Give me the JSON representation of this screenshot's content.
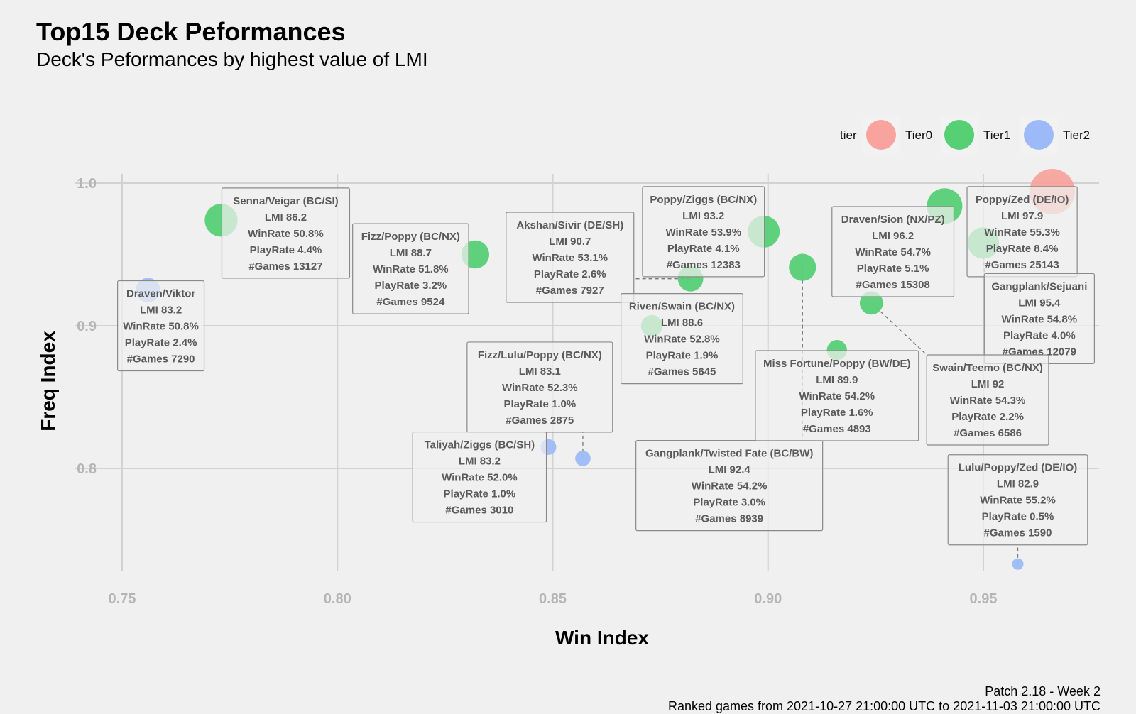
{
  "header": {
    "title": "Top15 Deck Peformances",
    "subtitle": "Deck's Peformances by highest value of LMI"
  },
  "caption": {
    "line1": "Patch 2.18 - Week 2",
    "line2": "Ranked games from 2021-10-27 21:00:00 UTC to 2021-11-03 21:00:00 UTC"
  },
  "chart_data": {
    "type": "scatter",
    "xlabel": "Win Index",
    "ylabel": "Freq Index",
    "xlim": [
      0.75,
      0.977
    ],
    "ylim": [
      0.72,
      1.005
    ],
    "x_ticks": [
      0.75,
      0.8,
      0.85,
      0.9,
      0.95
    ],
    "x_tick_labels": [
      "0.75",
      "0.80",
      "0.85",
      "0.90",
      "0.95"
    ],
    "y_ticks": [
      0.8,
      0.9,
      1.0
    ],
    "y_tick_labels": [
      "0.8",
      "0.9",
      "1.0"
    ],
    "grid": true,
    "legend": {
      "title": "tier",
      "placement": "top-right",
      "entries": [
        {
          "name": "Tier0",
          "color": "#f8a39d"
        },
        {
          "name": "Tier1",
          "color": "#56cf75"
        },
        {
          "name": "Tier2",
          "color": "#9cbaf7"
        }
      ]
    },
    "points": [
      {
        "deck": "Poppy/Zed (DE/IO)",
        "x": 0.966,
        "y": 0.994,
        "tier": "Tier0",
        "games": 25143,
        "lines": [
          "Poppy/Zed (DE/IO)",
          "LMI 97.9",
          "WinRate 55.3%",
          "PlayRate 8.4%",
          "#Games 25143"
        ],
        "label_x": 0.959,
        "label_y": 0.966,
        "label_bold_first": false
      },
      {
        "deck": "Draven/Sion (NX/PZ)",
        "x": 0.941,
        "y": 0.984,
        "tier": "Tier1",
        "games": 15308,
        "lines": [
          "Draven/Sion (NX/PZ)",
          "LMI 96.2",
          "WinRate 54.7%",
          "PlayRate 5.1%",
          "#Games 15308"
        ],
        "label_x": 0.929,
        "label_y": 0.952
      },
      {
        "deck": "Gangplank/Sejuani",
        "x": 0.95,
        "y": 0.958,
        "tier": "Tier1",
        "games": 12079,
        "lines": [
          "Gangplank/Sejuani",
          "LMI 95.4",
          "WinRate 54.8%",
          "PlayRate 4.0%",
          "#Games 12079"
        ],
        "label_x": 0.963,
        "label_y": 0.905
      },
      {
        "deck": "Poppy/Ziggs (BC/NX)",
        "x": 0.899,
        "y": 0.966,
        "tier": "Tier1",
        "games": 12383,
        "lines": [
          "Poppy/Ziggs (BC/NX)",
          "LMI 93.2",
          "WinRate 53.9%",
          "PlayRate 4.1%",
          "#Games 12383"
        ],
        "label_x": 0.885,
        "label_y": 0.966
      },
      {
        "deck": "Senna/Veigar (BC/SI)",
        "x": 0.773,
        "y": 0.974,
        "tier": "Tier1",
        "games": 13127,
        "lines": [
          "Senna/Veigar (BC/SI)",
          "LMI 86.2",
          "WinRate 50.8%",
          "PlayRate 4.4%",
          "#Games 13127"
        ],
        "label_x": 0.788,
        "label_y": 0.965
      },
      {
        "deck": "Fizz/Poppy (BC/NX)",
        "x": 0.832,
        "y": 0.95,
        "tier": "Tier1",
        "games": 9524,
        "lines": [
          "Fizz/Poppy (BC/NX)",
          "LMI 88.7",
          "WinRate 51.8%",
          "PlayRate 3.2%",
          "#Games 9524"
        ],
        "label_x": 0.817,
        "label_y": 0.94
      },
      {
        "deck": "Akshan/Sivir (DE/SH)",
        "x": 0.882,
        "y": 0.933,
        "tier": "Tier1",
        "games": 7927,
        "lines": [
          "Akshan/Sivir (DE/SH)",
          "LMI 90.7",
          "WinRate 53.1%",
          "PlayRate 2.6%",
          "#Games 7927"
        ],
        "label_x": 0.854,
        "label_y": 0.948
      },
      {
        "deck": "Gangplank/Twisted Fate (BC/BW)",
        "x": 0.908,
        "y": 0.941,
        "tier": "Tier1",
        "games": 8939,
        "lines": [
          "Gangplank/Twisted Fate (BC/BW)",
          "LMI 92.4",
          "WinRate 54.2%",
          "PlayRate 3.0%",
          "#Games 8939"
        ],
        "label_x": 0.891,
        "label_y": 0.788
      },
      {
        "deck": "Swain/Teemo (BC/NX)",
        "x": 0.924,
        "y": 0.916,
        "tier": "Tier1",
        "games": 6586,
        "lines": [
          "Swain/Teemo (BC/NX)",
          "LMI 92",
          "WinRate 54.3%",
          "PlayRate 2.2%",
          "#Games 6586"
        ],
        "label_x": 0.951,
        "label_y": 0.848
      },
      {
        "deck": "Miss Fortune/Poppy (BW/DE)",
        "x": 0.916,
        "y": 0.883,
        "tier": "Tier1",
        "games": 4893,
        "lines": [
          "Miss Fortune/Poppy (BW/DE)",
          "LMI 89.9",
          "WinRate 54.2%",
          "PlayRate 1.6%",
          "#Games 4893"
        ],
        "label_x": 0.916,
        "label_y": 0.851
      },
      {
        "deck": "Riven/Swain (BC/NX)",
        "x": 0.873,
        "y": 0.9,
        "tier": "Tier1",
        "games": 5645,
        "lines": [
          "Riven/Swain (BC/NX)",
          "LMI 88.6",
          "WinRate 52.8%",
          "PlayRate 1.9%",
          "#Games 5645"
        ],
        "label_x": 0.88,
        "label_y": 0.891
      },
      {
        "deck": "Draven/Viktor",
        "x": 0.756,
        "y": 0.925,
        "tier": "Tier2",
        "games": 7290,
        "lines": [
          "Draven/Viktor",
          "LMI 83.2",
          "WinRate 50.8%",
          "PlayRate 2.4%",
          "#Games 7290"
        ],
        "label_x": 0.759,
        "label_y": 0.9
      },
      {
        "deck": "Fizz/Lulu/Poppy (BC/NX)",
        "x": 0.857,
        "y": 0.807,
        "tier": "Tier2",
        "games": 2875,
        "lines": [
          "Fizz/Lulu/Poppy (BC/NX)",
          "LMI 83.1",
          "WinRate 52.3%",
          "PlayRate 1.0%",
          "#Games 2875"
        ],
        "label_x": 0.847,
        "label_y": 0.857
      },
      {
        "deck": "Taliyah/Ziggs (BC/SH)",
        "x": 0.849,
        "y": 0.815,
        "tier": "Tier2",
        "games": 3010,
        "lines": [
          "Taliyah/Ziggs (BC/SH)",
          "LMI 83.2",
          "WinRate 52.0%",
          "PlayRate 1.0%",
          "#Games 3010"
        ],
        "label_x": 0.833,
        "label_y": 0.794
      },
      {
        "deck": "Lulu/Poppy/Zed (DE/IO)",
        "x": 0.958,
        "y": 0.733,
        "tier": "Tier2",
        "games": 1590,
        "lines": [
          "Lulu/Poppy/Zed (DE/IO)",
          "LMI 82.9",
          "WinRate 55.2%",
          "PlayRate 0.5%",
          "#Games 1590"
        ],
        "label_x": 0.958,
        "label_y": 0.778
      }
    ]
  }
}
